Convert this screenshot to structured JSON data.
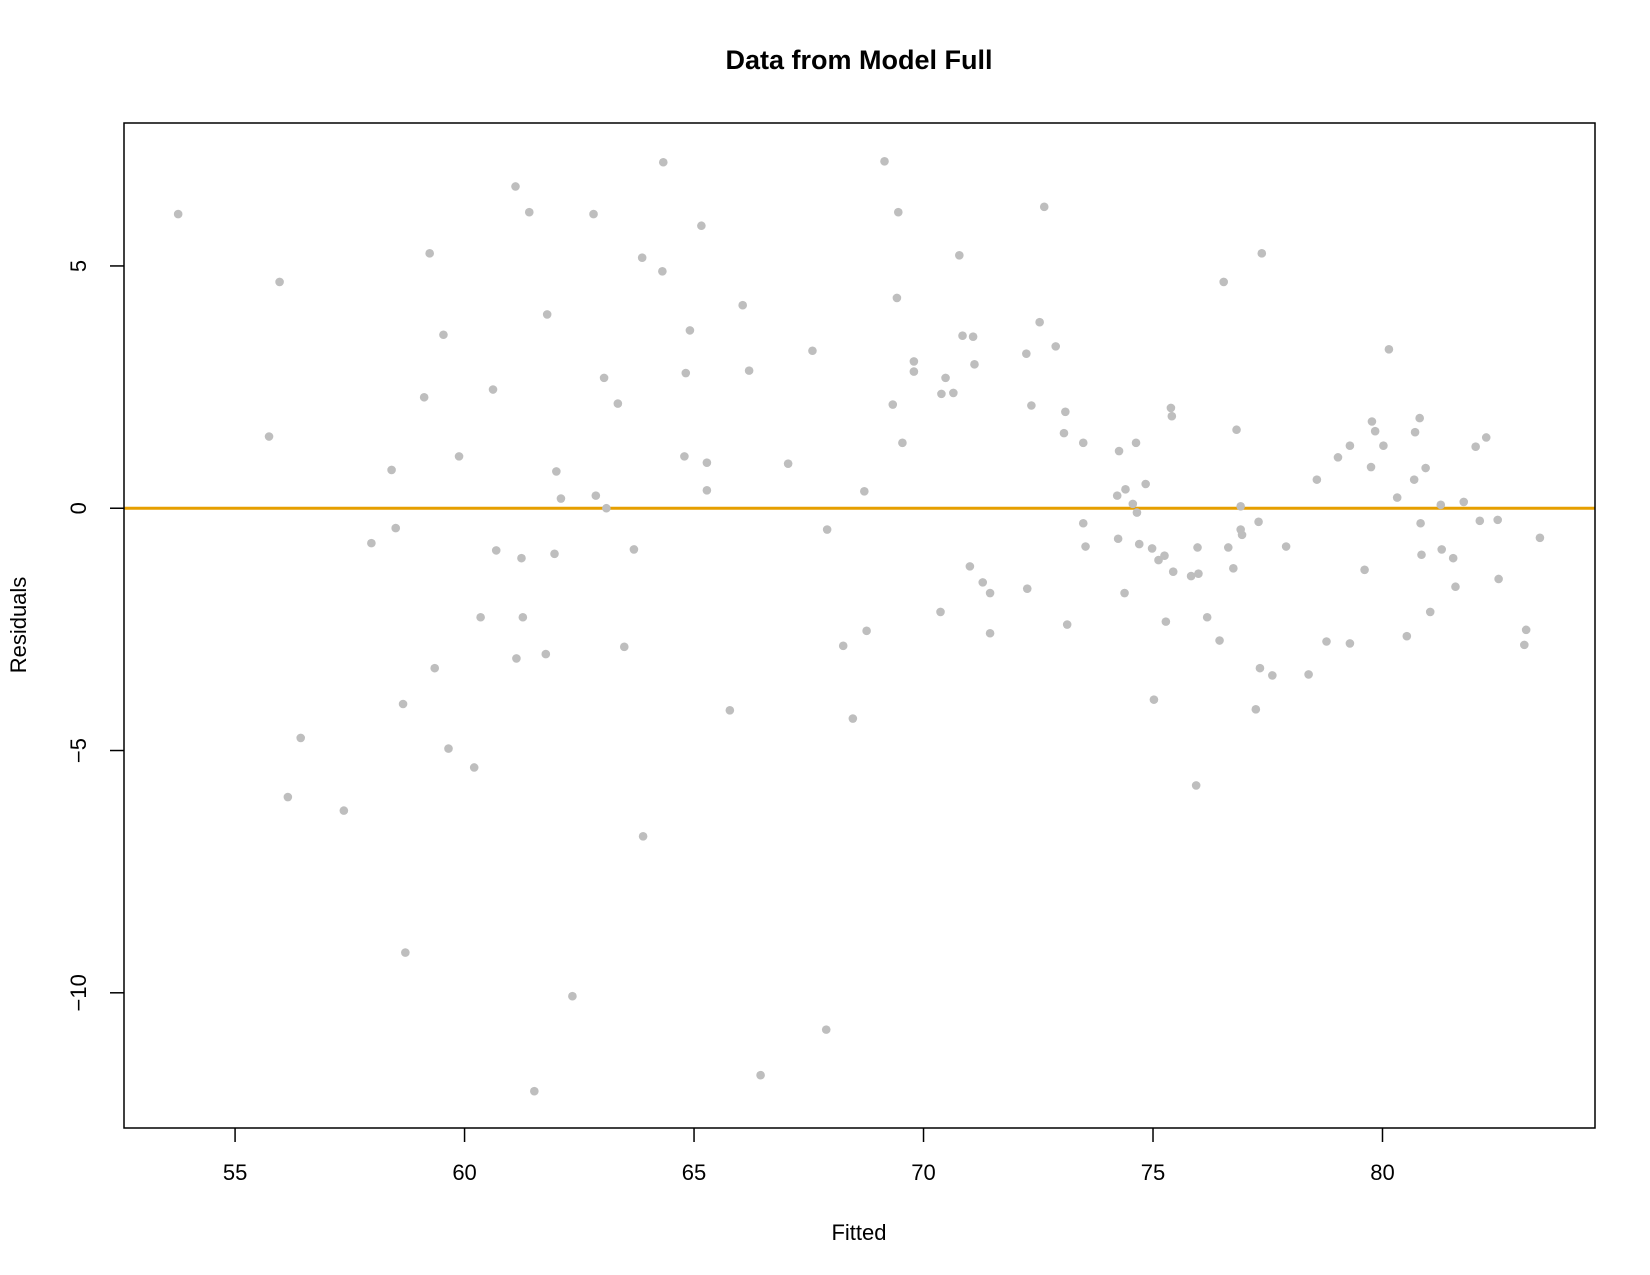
{
  "chart_data": {
    "type": "scatter",
    "title": "Data from Model Full",
    "xlabel": "Fitted",
    "ylabel": "Residuals",
    "xlim": [
      52.58,
      84.63
    ],
    "ylim": [
      -12.79,
      7.95
    ],
    "xticks": [
      55,
      60,
      65,
      70,
      75,
      80
    ],
    "yticks": [
      {
        "value": -10,
        "label": "−10"
      },
      {
        "value": -5,
        "label": "−5"
      },
      0,
      5
    ],
    "hline": {
      "value": 0,
      "color": "#e69f00"
    },
    "series": [
      {
        "color": "#bebebe",
        "x": [
          53.76,
          55.74,
          55.97,
          56.15,
          56.43,
          57.37,
          57.97,
          58.41,
          58.5,
          58.66,
          58.71,
          59.12,
          59.24,
          59.35,
          59.54,
          59.65,
          59.88,
          60.21,
          60.35,
          60.62,
          60.69,
          61.11,
          61.13,
          61.24,
          61.27,
          61.41,
          61.52,
          61.77,
          61.8,
          61.96,
          62.0,
          62.1,
          62.35,
          62.81,
          62.86,
          63.04,
          63.09,
          63.34,
          63.48,
          63.69,
          63.87,
          63.89,
          64.31,
          64.33,
          64.79,
          64.82,
          64.91,
          65.16,
          65.28,
          65.28,
          65.78,
          66.06,
          66.2,
          66.45,
          67.05,
          67.58,
          67.88,
          67.9,
          68.25,
          68.46,
          68.71,
          68.76,
          69.15,
          69.33,
          69.42,
          69.45,
          69.54,
          69.79,
          69.79,
          70.37,
          70.39,
          70.48,
          70.65,
          70.78,
          70.85,
          71.01,
          71.08,
          71.11,
          71.29,
          71.45,
          71.45,
          72.24,
          72.26,
          72.35,
          72.53,
          72.63,
          72.88,
          73.06,
          73.09,
          73.13,
          73.48,
          73.48,
          73.53,
          74.22,
          74.24,
          74.26,
          74.38,
          74.4,
          74.56,
          74.63,
          74.65,
          74.7,
          74.84,
          74.98,
          75.02,
          75.12,
          75.25,
          75.28,
          75.39,
          75.41,
          75.44,
          75.83,
          75.94,
          75.97,
          75.99,
          76.18,
          76.45,
          76.54,
          76.64,
          76.75,
          76.82,
          76.91,
          76.91,
          76.94,
          77.24,
          77.3,
          77.33,
          77.37,
          77.6,
          77.9,
          78.39,
          78.57,
          78.78,
          79.03,
          79.29,
          79.29,
          79.61,
          79.75,
          79.77,
          79.84,
          80.02,
          80.14,
          80.32,
          80.53,
          80.69,
          80.71,
          80.81,
          80.83,
          80.85,
          80.94,
          81.04,
          81.27,
          81.29,
          81.54,
          81.59,
          81.77,
          82.03,
          82.12,
          82.26,
          82.51,
          82.53,
          83.09,
          83.13,
          83.43
        ],
        "values": [
          6.07,
          1.48,
          4.67,
          -5.96,
          -4.74,
          -6.24,
          -0.72,
          0.79,
          -0.41,
          -4.04,
          -9.17,
          2.29,
          5.26,
          -3.3,
          3.58,
          -4.96,
          1.07,
          -5.35,
          -2.25,
          2.45,
          -0.87,
          6.64,
          -3.1,
          -1.03,
          -2.25,
          6.11,
          -12.03,
          -3.01,
          4.0,
          -0.94,
          0.76,
          0.2,
          -10.07,
          6.07,
          0.26,
          2.69,
          0.0,
          2.16,
          -2.86,
          -0.85,
          5.17,
          -6.77,
          4.89,
          7.14,
          1.07,
          2.79,
          3.67,
          5.83,
          0.94,
          0.37,
          -4.17,
          4.19,
          2.84,
          -11.7,
          0.92,
          3.25,
          -10.76,
          -0.44,
          -2.84,
          -4.34,
          0.35,
          -2.53,
          7.16,
          2.14,
          4.34,
          6.11,
          1.35,
          2.82,
          3.03,
          -2.14,
          2.36,
          2.69,
          2.38,
          5.22,
          3.56,
          -1.2,
          3.54,
          2.97,
          -1.53,
          -1.75,
          -2.58,
          3.19,
          -1.66,
          2.12,
          3.84,
          6.22,
          3.34,
          1.55,
          1.99,
          -2.4,
          1.35,
          -0.31,
          -0.79,
          0.26,
          -0.63,
          1.18,
          -1.75,
          0.39,
          0.09,
          1.35,
          -0.09,
          -0.74,
          0.5,
          -0.83,
          -3.95,
          -1.07,
          -0.98,
          -2.34,
          2.07,
          1.9,
          -1.31,
          -1.4,
          -5.72,
          -0.81,
          -1.35,
          -2.25,
          -2.73,
          4.67,
          -0.81,
          -1.24,
          1.62,
          0.04,
          -0.44,
          -0.55,
          -4.15,
          -0.28,
          -3.3,
          5.26,
          -3.45,
          -0.79,
          -3.43,
          0.59,
          -2.75,
          1.05,
          -2.79,
          1.29,
          -1.27,
          0.85,
          1.79,
          1.59,
          1.29,
          3.28,
          0.22,
          -2.64,
          0.59,
          1.57,
          1.86,
          -0.31,
          -0.96,
          0.83,
          -2.14,
          0.07,
          -0.85,
          -1.03,
          -1.62,
          0.13,
          1.27,
          -0.26,
          1.46,
          -0.24,
          -1.46,
          -2.82,
          -2.51,
          -0.61
        ]
      }
    ]
  }
}
